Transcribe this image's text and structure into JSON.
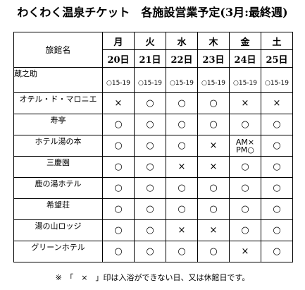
{
  "title": "わくわく温泉チケット　各施設営業予定(3月:最終週)",
  "header": {
    "name_label": "旅館名",
    "days": [
      {
        "weekday": "月",
        "date": "20日"
      },
      {
        "weekday": "火",
        "date": "21日"
      },
      {
        "weekday": "水",
        "date": "22日"
      },
      {
        "weekday": "木",
        "date": "23日"
      },
      {
        "weekday": "金",
        "date": "24日"
      },
      {
        "weekday": "土",
        "date": "25日"
      }
    ]
  },
  "hotels": [
    {
      "name": "蔵之助",
      "cells": [
        "○15-19",
        "○15-19",
        "○15-19",
        "○15-19",
        "○15-19",
        "○15-19"
      ]
    },
    {
      "name": "オテル・ド・マロニエ",
      "cells": [
        "×",
        "○",
        "○",
        "○",
        "×",
        "×"
      ]
    },
    {
      "name": "寿亭",
      "cells": [
        "○",
        "○",
        "○",
        "○",
        "○",
        "○"
      ]
    },
    {
      "name": "ホテル湯の本",
      "cells": [
        "○",
        "○",
        "○",
        "×",
        "AM×",
        "○"
      ],
      "cell5_line2": "PM○"
    },
    {
      "name": "三慶園",
      "cells": [
        "○",
        "○",
        "×",
        "×",
        "○",
        "○"
      ]
    },
    {
      "name": "鹿の湯ホテル",
      "cells": [
        "○",
        "○",
        "○",
        "○",
        "○",
        "○"
      ]
    },
    {
      "name": "希望荘",
      "cells": [
        "○",
        "○",
        "○",
        "○",
        "○",
        "○"
      ]
    },
    {
      "name": "湯の山ロッジ",
      "cells": [
        "○",
        "○",
        "×",
        "×",
        "○",
        "○"
      ]
    },
    {
      "name": "グリーンホテル",
      "cells": [
        "○",
        "○",
        "○",
        "○",
        "×",
        "○"
      ]
    }
  ],
  "footnote": "※　「　×　」印は入浴ができない日、又は休館日です。"
}
